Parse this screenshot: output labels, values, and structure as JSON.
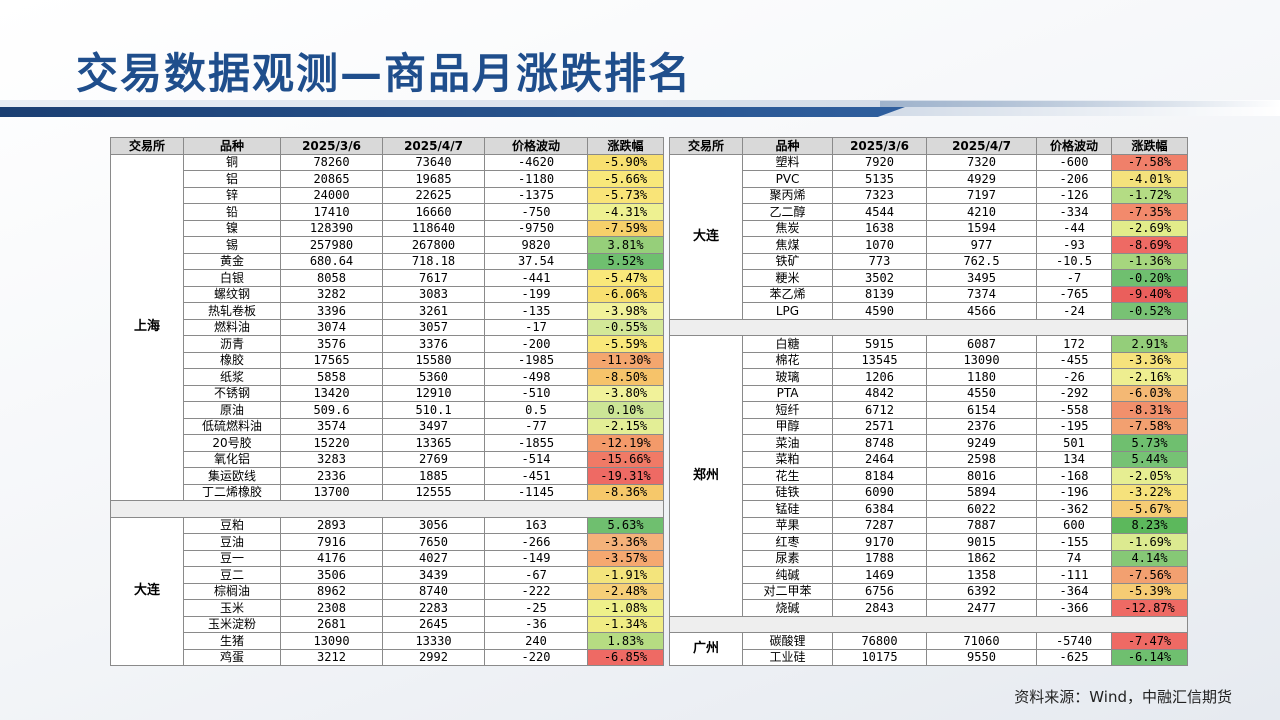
{
  "title": "交易数据观测—商品月涨跌排名",
  "headers": [
    "交易所",
    "品种",
    "2025/3/6",
    "2025/4/7",
    "价格波动",
    "涨跌幅"
  ],
  "left_groups": [
    {
      "exchange": "上海",
      "rows": [
        {
          "name": "铜",
          "p1": "78260",
          "p2": "73640",
          "diff": "-4620",
          "pct": "-5.90%",
          "color": "#f8e070"
        },
        {
          "name": "铝",
          "p1": "20865",
          "p2": "19685",
          "diff": "-1180",
          "pct": "-5.66%",
          "color": "#f9e87a"
        },
        {
          "name": "锌",
          "p1": "24000",
          "p2": "22625",
          "diff": "-1375",
          "pct": "-5.73%",
          "color": "#f9e478"
        },
        {
          "name": "铅",
          "p1": "17410",
          "p2": "16660",
          "diff": "-750",
          "pct": "-4.31%",
          "color": "#eef191"
        },
        {
          "name": "镍",
          "p1": "128390",
          "p2": "118640",
          "diff": "-9750",
          "pct": "-7.59%",
          "color": "#f6d06a"
        },
        {
          "name": "锡",
          "p1": "257980",
          "p2": "267800",
          "diff": "9820",
          "pct": "3.81%",
          "color": "#96cf7a"
        },
        {
          "name": "黄金",
          "p1": "680.64",
          "p2": "718.18",
          "diff": "37.54",
          "pct": "5.52%",
          "color": "#6fbf6f"
        },
        {
          "name": "白银",
          "p1": "8058",
          "p2": "7617",
          "diff": "-441",
          "pct": "-5.47%",
          "color": "#f9e87a"
        },
        {
          "name": "螺纹钢",
          "p1": "3282",
          "p2": "3083",
          "diff": "-199",
          "pct": "-6.06%",
          "color": "#f8e070"
        },
        {
          "name": "热轧卷板",
          "p1": "3396",
          "p2": "3261",
          "diff": "-135",
          "pct": "-3.98%",
          "color": "#f1f29a"
        },
        {
          "name": "燃料油",
          "p1": "3074",
          "p2": "3057",
          "diff": "-17",
          "pct": "-0.55%",
          "color": "#d3e898"
        },
        {
          "name": "沥青",
          "p1": "3576",
          "p2": "3376",
          "diff": "-200",
          "pct": "-5.59%",
          "color": "#f9e87a"
        },
        {
          "name": "橡胶",
          "p1": "17565",
          "p2": "15580",
          "diff": "-1985",
          "pct": "-11.30%",
          "color": "#f4a66e"
        },
        {
          "name": "纸浆",
          "p1": "5858",
          "p2": "5360",
          "diff": "-498",
          "pct": "-8.50%",
          "color": "#f6c36a"
        },
        {
          "name": "不锈钢",
          "p1": "13420",
          "p2": "12910",
          "diff": "-510",
          "pct": "-3.80%",
          "color": "#f1f29a"
        },
        {
          "name": "原油",
          "p1": "509.6",
          "p2": "510.1",
          "diff": "0.5",
          "pct": "0.10%",
          "color": "#cce596"
        },
        {
          "name": "低硫燃料油",
          "p1": "3574",
          "p2": "3497",
          "diff": "-77",
          "pct": "-2.15%",
          "color": "#e3ee96"
        },
        {
          "name": "20号胶",
          "p1": "15220",
          "p2": "13365",
          "diff": "-1855",
          "pct": "-12.19%",
          "color": "#f39a6a"
        },
        {
          "name": "氧化铝",
          "p1": "3283",
          "p2": "2769",
          "diff": "-514",
          "pct": "-15.66%",
          "color": "#f07a66"
        },
        {
          "name": "集运欧线",
          "p1": "2336",
          "p2": "1885",
          "diff": "-451",
          "pct": "-19.31%",
          "color": "#ee6a64"
        },
        {
          "name": "丁二烯橡胶",
          "p1": "13700",
          "p2": "12555",
          "diff": "-1145",
          "pct": "-8.36%",
          "color": "#f6c86a"
        }
      ]
    },
    {
      "exchange": "大连",
      "rows": [
        {
          "name": "豆粕",
          "p1": "2893",
          "p2": "3056",
          "diff": "163",
          "pct": "5.63%",
          "color": "#6fbf6f"
        },
        {
          "name": "豆油",
          "p1": "7916",
          "p2": "7650",
          "diff": "-266",
          "pct": "-3.36%",
          "color": "#f4b27a"
        },
        {
          "name": "豆一",
          "p1": "4176",
          "p2": "4027",
          "diff": "-149",
          "pct": "-3.57%",
          "color": "#f5a870"
        },
        {
          "name": "豆二",
          "p1": "3506",
          "p2": "3439",
          "diff": "-67",
          "pct": "-1.91%",
          "color": "#f3e47c"
        },
        {
          "name": "棕榈油",
          "p1": "8962",
          "p2": "8740",
          "diff": "-222",
          "pct": "-2.48%",
          "color": "#f6cf78"
        },
        {
          "name": "玉米",
          "p1": "2308",
          "p2": "2283",
          "diff": "-25",
          "pct": "-1.08%",
          "color": "#eef08a"
        },
        {
          "name": "玉米淀粉",
          "p1": "2681",
          "p2": "2645",
          "diff": "-36",
          "pct": "-1.34%",
          "color": "#f0ec84"
        },
        {
          "name": "生猪",
          "p1": "13090",
          "p2": "13330",
          "diff": "240",
          "pct": "1.83%",
          "color": "#b6dc82"
        },
        {
          "name": "鸡蛋",
          "p1": "3212",
          "p2": "2992",
          "diff": "-220",
          "pct": "-6.85%",
          "color": "#ee6a64"
        }
      ]
    }
  ],
  "right_groups": [
    {
      "exchange": "大连",
      "rows": [
        {
          "name": "塑料",
          "p1": "7920",
          "p2": "7320",
          "diff": "-600",
          "pct": "-7.58%",
          "color": "#f0806a"
        },
        {
          "name": "PVC",
          "p1": "5135",
          "p2": "4929",
          "diff": "-206",
          "pct": "-4.01%",
          "color": "#f4e27c"
        },
        {
          "name": "聚丙烯",
          "p1": "7323",
          "p2": "7197",
          "diff": "-126",
          "pct": "-1.72%",
          "color": "#b4dc84"
        },
        {
          "name": "乙二醇",
          "p1": "4544",
          "p2": "4210",
          "diff": "-334",
          "pct": "-7.35%",
          "color": "#f28a6c"
        },
        {
          "name": "焦炭",
          "p1": "1638",
          "p2": "1594",
          "diff": "-44",
          "pct": "-2.69%",
          "color": "#e2ec8a"
        },
        {
          "name": "焦煤",
          "p1": "1070",
          "p2": "977",
          "diff": "-93",
          "pct": "-8.69%",
          "color": "#ee6a64"
        },
        {
          "name": "铁矿",
          "p1": "773",
          "p2": "762.5",
          "diff": "-10.5",
          "pct": "-1.36%",
          "color": "#a6d67e"
        },
        {
          "name": "粳米",
          "p1": "3502",
          "p2": "3495",
          "diff": "-7",
          "pct": "-0.20%",
          "color": "#6fbf6f"
        },
        {
          "name": "苯乙烯",
          "p1": "8139",
          "p2": "7374",
          "diff": "-765",
          "pct": "-9.40%",
          "color": "#ea5f5c"
        },
        {
          "name": "LPG",
          "p1": "4590",
          "p2": "4566",
          "diff": "-24",
          "pct": "-0.52%",
          "color": "#78c274"
        }
      ]
    },
    {
      "exchange": "郑州",
      "rows": [
        {
          "name": "白糖",
          "p1": "5915",
          "p2": "6087",
          "diff": "172",
          "pct": "2.91%",
          "color": "#94ce7a"
        },
        {
          "name": "棉花",
          "p1": "13545",
          "p2": "13090",
          "diff": "-455",
          "pct": "-3.36%",
          "color": "#f6e27c"
        },
        {
          "name": "玻璃",
          "p1": "1206",
          "p2": "1180",
          "diff": "-26",
          "pct": "-2.16%",
          "color": "#eeee90"
        },
        {
          "name": "PTA",
          "p1": "4842",
          "p2": "4550",
          "diff": "-292",
          "pct": "-6.03%",
          "color": "#f4b874"
        },
        {
          "name": "短纤",
          "p1": "6712",
          "p2": "6154",
          "diff": "-558",
          "pct": "-8.31%",
          "color": "#f1906c"
        },
        {
          "name": "甲醇",
          "p1": "2571",
          "p2": "2376",
          "diff": "-195",
          "pct": "-7.58%",
          "color": "#f2a070"
        },
        {
          "name": "菜油",
          "p1": "8748",
          "p2": "9249",
          "diff": "501",
          "pct": "5.73%",
          "color": "#6fbf6f"
        },
        {
          "name": "菜粕",
          "p1": "2464",
          "p2": "2598",
          "diff": "134",
          "pct": "5.44%",
          "color": "#76c274"
        },
        {
          "name": "花生",
          "p1": "8184",
          "p2": "8016",
          "diff": "-168",
          "pct": "-2.05%",
          "color": "#e6ee92"
        },
        {
          "name": "硅铁",
          "p1": "6090",
          "p2": "5894",
          "diff": "-196",
          "pct": "-3.22%",
          "color": "#f6e27c"
        },
        {
          "name": "锰硅",
          "p1": "6384",
          "p2": "6022",
          "diff": "-362",
          "pct": "-5.67%",
          "color": "#f6cc74"
        },
        {
          "name": "苹果",
          "p1": "7287",
          "p2": "7887",
          "diff": "600",
          "pct": "8.23%",
          "color": "#5cb85c"
        },
        {
          "name": "红枣",
          "p1": "9170",
          "p2": "9015",
          "diff": "-155",
          "pct": "-1.69%",
          "color": "#dcea90"
        },
        {
          "name": "尿素",
          "p1": "1788",
          "p2": "1862",
          "diff": "74",
          "pct": "4.14%",
          "color": "#86c876"
        },
        {
          "name": "纯碱",
          "p1": "1469",
          "p2": "1358",
          "diff": "-111",
          "pct": "-7.56%",
          "color": "#f2a070"
        },
        {
          "name": "对二甲苯",
          "p1": "6756",
          "p2": "6392",
          "diff": "-364",
          "pct": "-5.39%",
          "color": "#f6cc74"
        },
        {
          "name": "烧碱",
          "p1": "2843",
          "p2": "2477",
          "diff": "-366",
          "pct": "-12.87%",
          "color": "#ee6a64"
        }
      ]
    },
    {
      "exchange": "广州",
      "rows": [
        {
          "name": "碳酸锂",
          "p1": "76800",
          "p2": "71060",
          "diff": "-5740",
          "pct": "-7.47%",
          "color": "#ee6a64"
        },
        {
          "name": "工业硅",
          "p1": "10175",
          "p2": "9550",
          "diff": "-625",
          "pct": "-6.14%",
          "color": "#6fbf6f"
        }
      ]
    }
  ],
  "source": "资料来源：Wind，中融汇信期货"
}
